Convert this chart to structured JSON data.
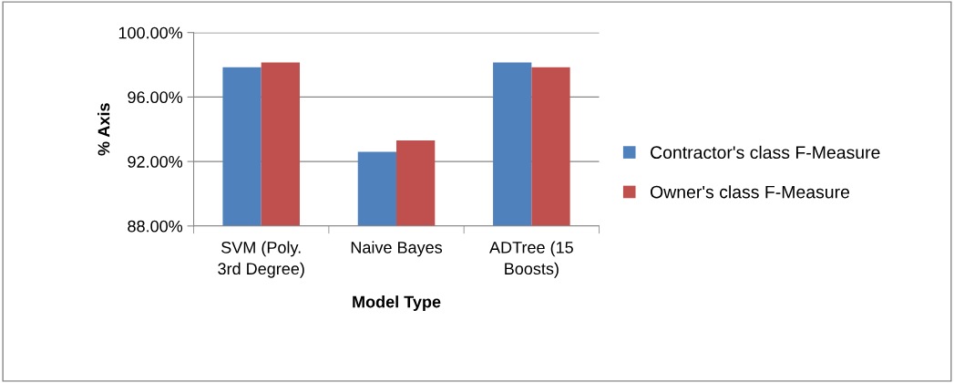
{
  "chart_data": {
    "type": "bar",
    "xlabel": "Model Type",
    "ylabel": "% Axis",
    "categories": [
      "SVM (Poly.\n3rd Degree)",
      "Naive Bayes",
      "ADTree (15\nBoosts)"
    ],
    "series": [
      {
        "name": "Contractor's class F-Measure",
        "color": "#4f81bd",
        "values": [
          97.85,
          92.6,
          98.15
        ]
      },
      {
        "name": "Owner's class F-Measure",
        "color": "#c0504d",
        "values": [
          98.15,
          93.3,
          97.85
        ]
      }
    ],
    "ylim": [
      88,
      100
    ],
    "yticks": [
      {
        "value": 88,
        "label": "88.00%"
      },
      {
        "value": 92,
        "label": "92.00%"
      },
      {
        "value": 96,
        "label": "96.00%"
      },
      {
        "value": 100,
        "label": "100.00%"
      }
    ],
    "grid": "y",
    "legend": "right"
  }
}
